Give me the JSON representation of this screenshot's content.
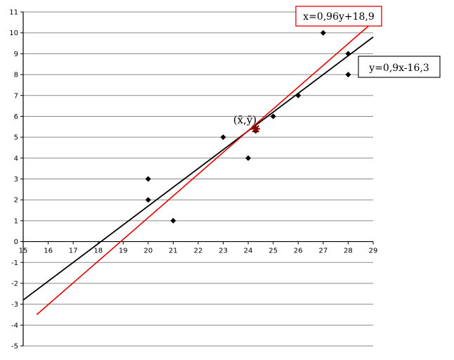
{
  "chart_data": {
    "type": "scatter",
    "title": "",
    "xlabel": "",
    "ylabel": "",
    "xlim": [
      15,
      29
    ],
    "ylim": [
      -5,
      11
    ],
    "x_ticks": [
      15,
      16,
      17,
      18,
      19,
      20,
      21,
      22,
      23,
      24,
      25,
      26,
      27,
      28,
      29
    ],
    "y_ticks": [
      -5,
      -4,
      -3,
      -2,
      -1,
      0,
      1,
      2,
      3,
      4,
      5,
      6,
      7,
      8,
      9,
      10,
      11
    ],
    "grid": "horizontal",
    "points": [
      {
        "x": 20,
        "y": 3
      },
      {
        "x": 20,
        "y": 2
      },
      {
        "x": 21,
        "y": 1
      },
      {
        "x": 23,
        "y": 5
      },
      {
        "x": 24,
        "y": 4
      },
      {
        "x": 24.3,
        "y": 5.3
      },
      {
        "x": 25,
        "y": 6
      },
      {
        "x": 26,
        "y": 7
      },
      {
        "x": 27,
        "y": 10
      },
      {
        "x": 28,
        "y": 9
      },
      {
        "x": 28,
        "y": 8
      }
    ],
    "mean_point": {
      "x": 24.3,
      "y": 5.4,
      "label": "(x̄,ȳ)"
    },
    "lines": [
      {
        "equation": "y=0,9x-16,3",
        "slope": 0.9,
        "intercept": -16.3,
        "x_range": [
          15,
          29
        ],
        "color": "#000000"
      },
      {
        "equation": "x=0,96y+18,9",
        "x_coef_y": 0.96,
        "x_const": 18.9,
        "y_range": [
          -3.5,
          10.5
        ],
        "color": "#e00000"
      }
    ],
    "point_color": "#000000",
    "mean_color": "#8b0000"
  }
}
